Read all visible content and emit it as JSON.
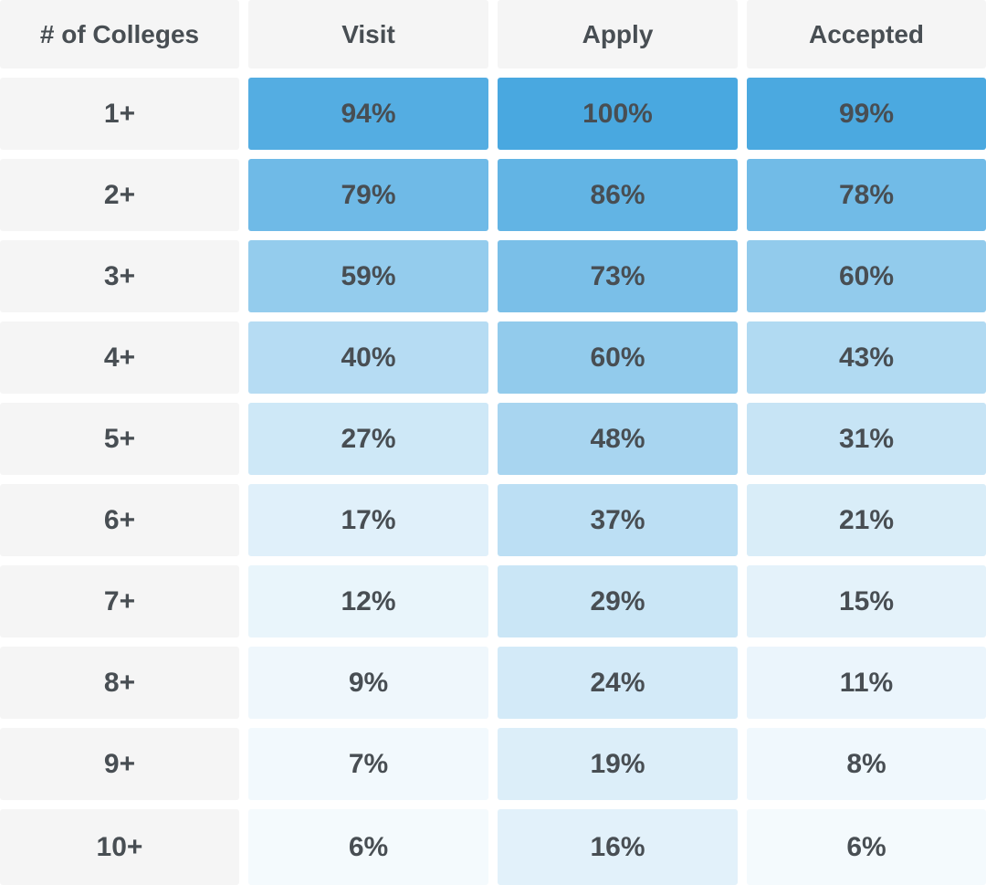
{
  "colors": {
    "page_bg": "#ffffff",
    "cell_gray": "#f5f5f5",
    "text": "#484e53",
    "heat_low": "#ffffff",
    "heat_high": "#49a8e0"
  },
  "chart_data": {
    "type": "heatmap",
    "title": "",
    "row_header": "# of Colleges",
    "columns": [
      "Visit",
      "Apply",
      "Accepted"
    ],
    "unit": "%",
    "value_range": [
      0,
      100
    ],
    "legend": "none",
    "grid": "off",
    "colormap": {
      "low": "#ffffff",
      "high": "#49a8e0"
    },
    "rows": [
      {
        "label": "1+",
        "values": [
          94,
          100,
          99
        ]
      },
      {
        "label": "2+",
        "values": [
          79,
          86,
          78
        ]
      },
      {
        "label": "3+",
        "values": [
          59,
          73,
          60
        ]
      },
      {
        "label": "4+",
        "values": [
          40,
          60,
          43
        ]
      },
      {
        "label": "5+",
        "values": [
          27,
          48,
          31
        ]
      },
      {
        "label": "6+",
        "values": [
          17,
          37,
          21
        ]
      },
      {
        "label": "7+",
        "values": [
          12,
          29,
          15
        ]
      },
      {
        "label": "8+",
        "values": [
          9,
          24,
          11
        ]
      },
      {
        "label": "9+",
        "values": [
          7,
          19,
          8
        ]
      },
      {
        "label": "10+",
        "values": [
          6,
          16,
          6
        ]
      }
    ]
  }
}
